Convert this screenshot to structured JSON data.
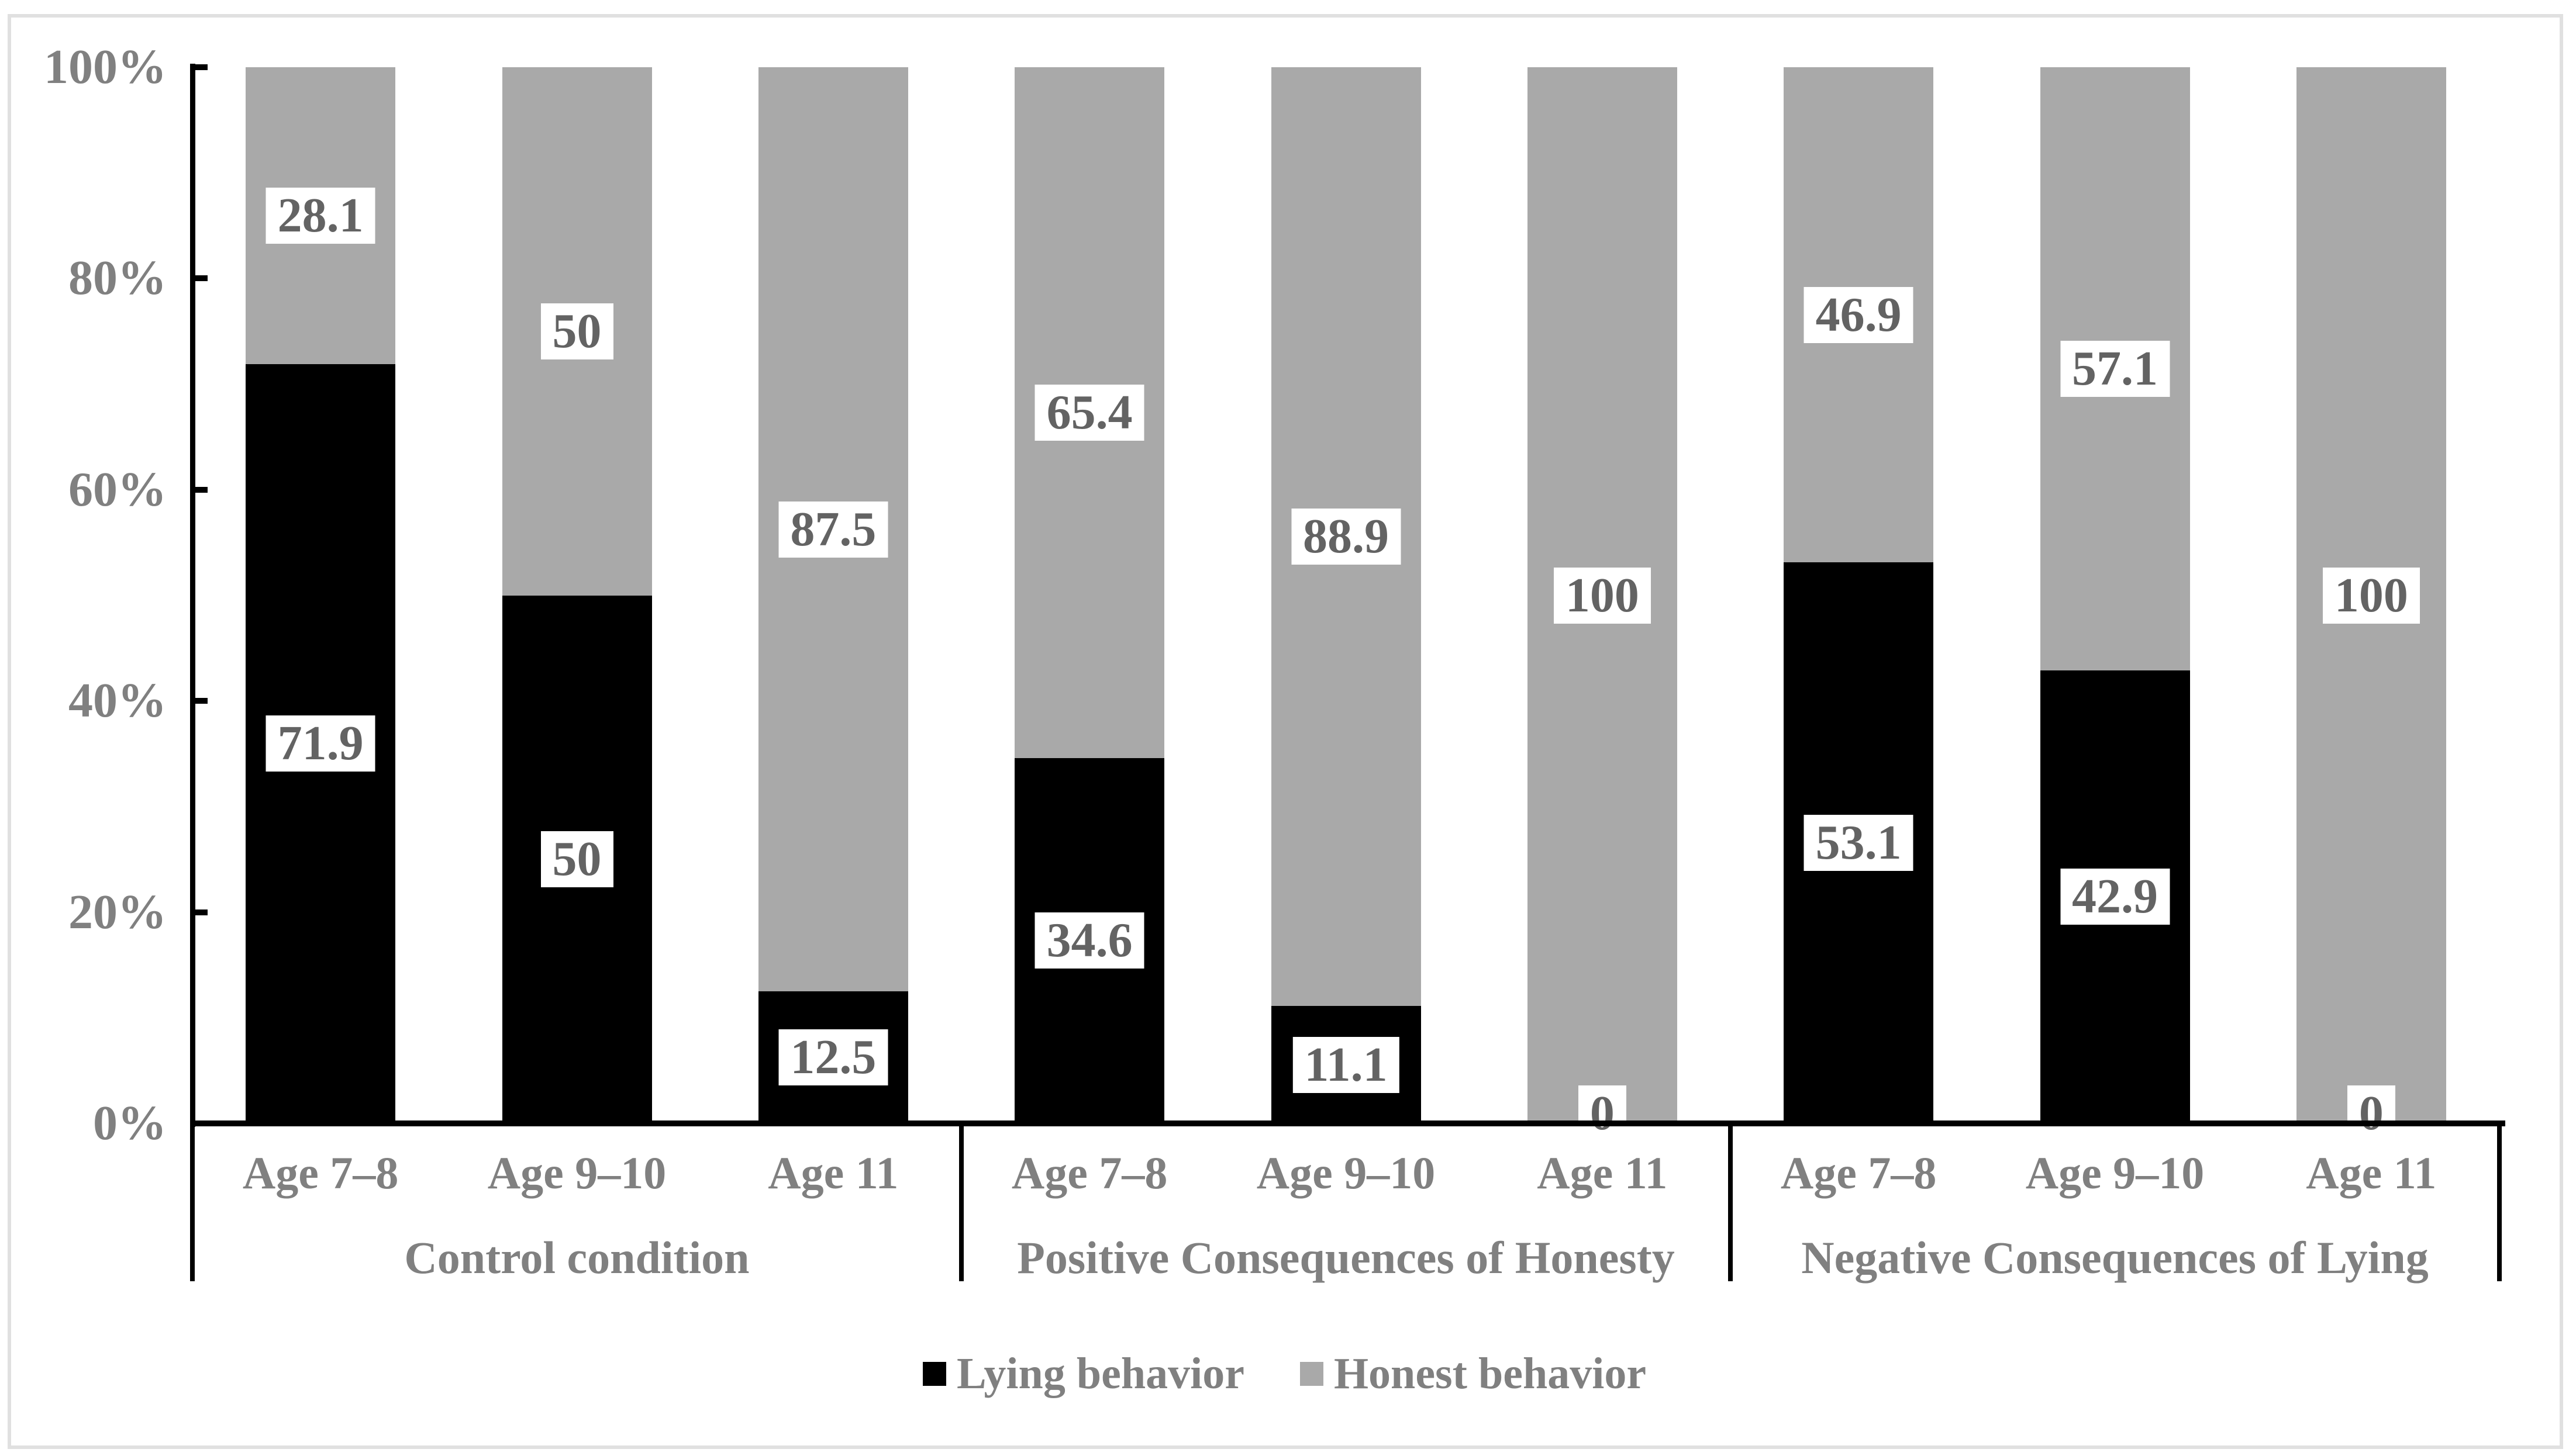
{
  "figure": {
    "background": "#ffffff",
    "border_color": "#e0e0e0",
    "axis_line_color": "#000000",
    "axis_text_color": "#808080",
    "data_label_text_color": "#636363",
    "data_label_background": "#ffffff"
  },
  "chart_data": {
    "type": "bar",
    "variant": "100-percent-stacked-column",
    "title": "",
    "xlabel": "",
    "ylabel": "",
    "grid": false,
    "ylim": [
      0,
      100
    ],
    "yticks": [
      {
        "value": 0,
        "label": "0%"
      },
      {
        "value": 20,
        "label": "20%"
      },
      {
        "value": 40,
        "label": "40%"
      },
      {
        "value": 60,
        "label": "60%"
      },
      {
        "value": 80,
        "label": "80%"
      },
      {
        "value": 100,
        "label": "100%"
      }
    ],
    "group_labels": [
      "Control condition",
      "Positive Consequences of Honesty",
      "Negative Consequences of Lying"
    ],
    "categories": [
      "Age 7–8",
      "Age 9–10",
      "Age 11",
      "Age 7–8",
      "Age 9–10",
      "Age 11",
      "Age 7–8",
      "Age 9–10",
      "Age 11"
    ],
    "series": [
      {
        "name": "Lying behavior",
        "color": "#000000",
        "values": [
          71.9,
          50,
          12.5,
          34.6,
          11.1,
          0,
          53.1,
          42.9,
          0
        ],
        "labels": [
          "71.9",
          "50",
          "12.5",
          "34.6",
          "11.1",
          "0",
          "53.1",
          "42.9",
          "0"
        ]
      },
      {
        "name": "Honest behavior",
        "color": "#a9a9a9",
        "values": [
          28.1,
          50,
          87.5,
          65.4,
          88.9,
          100,
          46.9,
          57.1,
          100
        ],
        "labels": [
          "28.1",
          "50",
          "87.5",
          "65.4",
          "88.9",
          "100",
          "46.9",
          "57.1",
          "100"
        ]
      }
    ],
    "legend": {
      "position": "bottom",
      "entries": [
        "Lying behavior",
        "Honest behavior"
      ]
    }
  }
}
